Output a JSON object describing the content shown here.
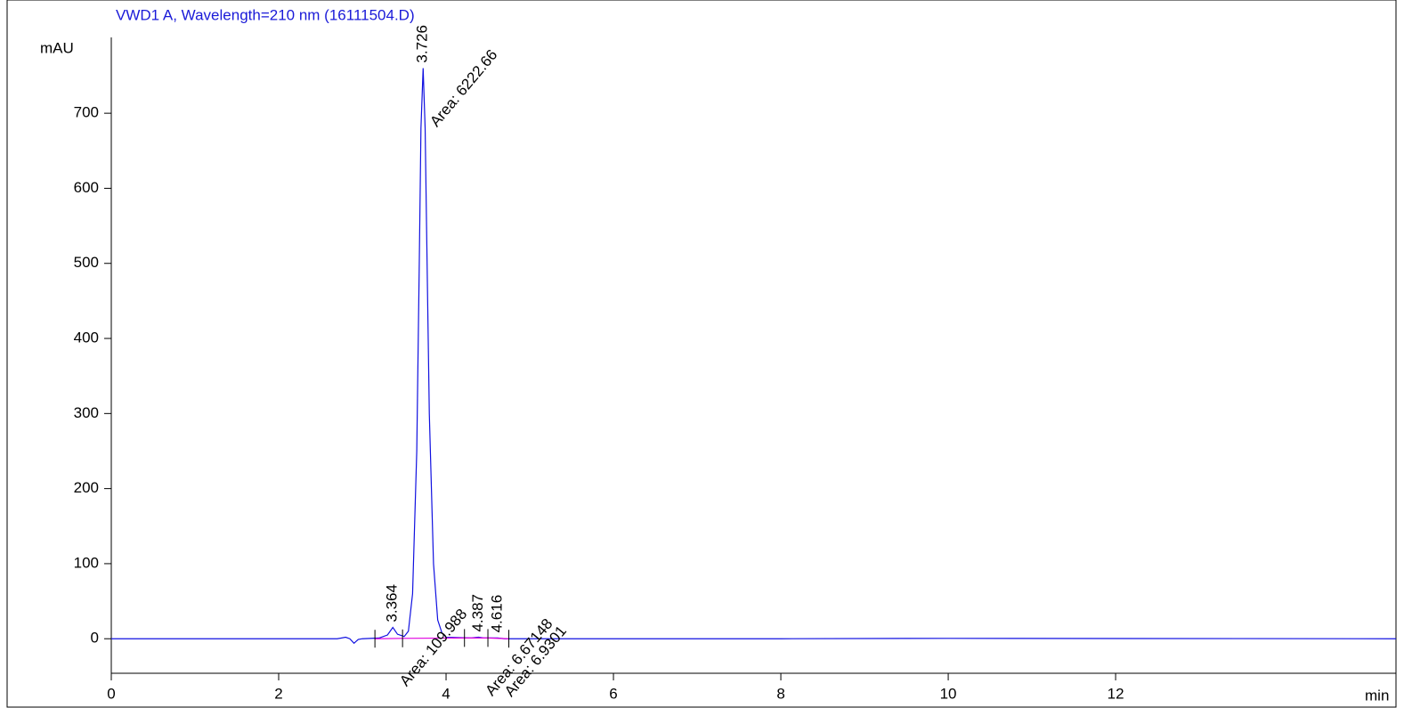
{
  "chart_data": {
    "type": "line",
    "title": "VWD1 A, Wavelength=210 nm (16111504.D)",
    "y_label": "mAU",
    "x_label": "min",
    "xlim": [
      0,
      15.35
    ],
    "ylim": [
      -46,
      801
    ],
    "xticks": [
      0,
      2,
      4,
      6,
      8,
      10,
      12
    ],
    "yticks": [
      0,
      100,
      200,
      300,
      400,
      500,
      600,
      700
    ],
    "series": [
      {
        "name": "signal",
        "color": "#1010e0",
        "x": [
          0,
          2.7,
          2.8,
          2.85,
          2.9,
          2.95,
          3.0,
          3.2,
          3.3,
          3.364,
          3.42,
          3.5,
          3.55,
          3.6,
          3.65,
          3.68,
          3.7,
          3.726,
          3.75,
          3.78,
          3.8,
          3.85,
          3.9,
          3.95,
          4.0,
          4.3,
          4.387,
          4.45,
          4.616,
          4.7,
          5,
          8,
          10,
          15.35
        ],
        "values": [
          0,
          0,
          2,
          0,
          -6,
          -1,
          0,
          1,
          5,
          15,
          6,
          3,
          10,
          60,
          250,
          500,
          680,
          760,
          680,
          450,
          300,
          100,
          25,
          8,
          2,
          1,
          2,
          1,
          1,
          0,
          0,
          0,
          0.5,
          0
        ]
      },
      {
        "name": "baseline",
        "color": "#e000e0",
        "x": [
          3.15,
          3.48,
          4.22,
          4.5,
          4.75
        ],
        "values": [
          0,
          0.5,
          1,
          1,
          0
        ]
      }
    ],
    "peaks": {
      "times": [
        3.364,
        3.726,
        4.387,
        4.616
      ],
      "areas": [
        109.988,
        6222.66,
        6.67148,
        6.9301
      ],
      "area_labels": [
        "Area: 109.988",
        "Area: 6222.66",
        "Area: 6.67148",
        "Area: 6.9301"
      ]
    }
  }
}
